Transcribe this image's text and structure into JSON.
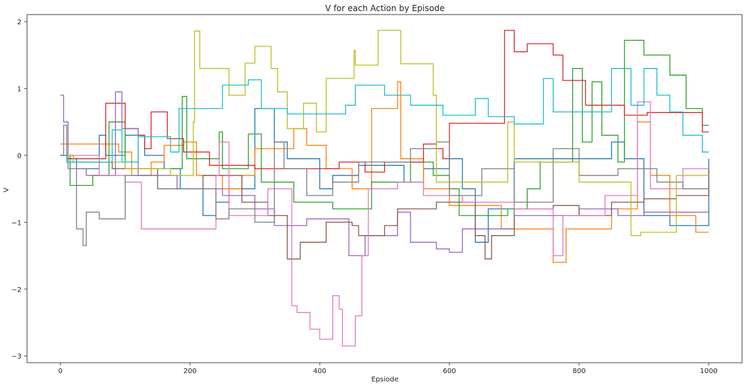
{
  "chart_data": {
    "type": "line",
    "title": "V for each Action by Episode",
    "xlabel": "Epsiode",
    "ylabel": "V",
    "xlim": [
      -50,
      1050
    ],
    "ylim": [
      -3.1,
      2.1
    ],
    "xticks": [
      0,
      200,
      400,
      600,
      800,
      1000
    ],
    "yticks": [
      -3,
      -2,
      -1,
      0,
      1,
      2
    ],
    "grid": false,
    "legend": "none",
    "step": true,
    "series": [
      {
        "name": "blue",
        "color": "#1f77b4",
        "points": [
          [
            0,
            0
          ],
          [
            10,
            -0.05
          ],
          [
            25,
            -0.2
          ],
          [
            60,
            0.3
          ],
          [
            70,
            0
          ],
          [
            100,
            0.3
          ],
          [
            130,
            0
          ],
          [
            160,
            -0.2
          ],
          [
            185,
            -0.5
          ],
          [
            220,
            -0.9
          ],
          [
            240,
            -0.7
          ],
          [
            260,
            -0.5
          ],
          [
            300,
            0.7
          ],
          [
            330,
            0.2
          ],
          [
            350,
            -0.05
          ],
          [
            400,
            -0.5
          ],
          [
            420,
            -0.3
          ],
          [
            460,
            -0.15
          ],
          [
            530,
            -0.4
          ],
          [
            560,
            -0.2
          ],
          [
            600,
            -0.05
          ],
          [
            620,
            -0.5
          ],
          [
            640,
            -1.3
          ],
          [
            660,
            -0.8
          ],
          [
            700,
            -0.05
          ],
          [
            850,
            0.2
          ],
          [
            870,
            -0.05
          ],
          [
            900,
            -0.9
          ],
          [
            940,
            -1.05
          ],
          [
            1000,
            -0.05
          ]
        ]
      },
      {
        "name": "orange",
        "color": "#ff7f0e",
        "points": [
          [
            0,
            0.17
          ],
          [
            90,
            0.05
          ],
          [
            110,
            -0.3
          ],
          [
            140,
            -0.1
          ],
          [
            160,
            0.15
          ],
          [
            190,
            0.2
          ],
          [
            210,
            -0.3
          ],
          [
            250,
            -0.5
          ],
          [
            280,
            -0.3
          ],
          [
            300,
            0.1
          ],
          [
            360,
            0.4
          ],
          [
            380,
            0.15
          ],
          [
            410,
            -0.2
          ],
          [
            450,
            -0.5
          ],
          [
            480,
            0.7
          ],
          [
            520,
            1.1
          ],
          [
            525,
            -0.05
          ],
          [
            560,
            -0.5
          ],
          [
            600,
            -0.75
          ],
          [
            680,
            -1.1
          ],
          [
            760,
            -1.6
          ],
          [
            780,
            -1.1
          ],
          [
            850,
            -0.8
          ],
          [
            890,
            0.5
          ],
          [
            910,
            -0.3
          ],
          [
            940,
            -0.9
          ],
          [
            980,
            -1.15
          ],
          [
            1000,
            -1.15
          ]
        ]
      },
      {
        "name": "green",
        "color": "#2ca02c",
        "points": [
          [
            0,
            0
          ],
          [
            15,
            -0.45
          ],
          [
            50,
            -0.3
          ],
          [
            75,
            0.5
          ],
          [
            100,
            -0.2
          ],
          [
            188,
            0.88
          ],
          [
            195,
            -0.05
          ],
          [
            245,
            0.35
          ],
          [
            250,
            -0.2
          ],
          [
            290,
            0.32
          ],
          [
            310,
            -0.4
          ],
          [
            360,
            -0.7
          ],
          [
            420,
            -0.8
          ],
          [
            480,
            -0.4
          ],
          [
            540,
            -0.1
          ],
          [
            575,
            -0.3
          ],
          [
            600,
            -0.5
          ],
          [
            615,
            -0.9
          ],
          [
            690,
            -0.8
          ],
          [
            720,
            -0.5
          ],
          [
            740,
            -0.1
          ],
          [
            790,
            1.3
          ],
          [
            805,
            0.2
          ],
          [
            820,
            1.1
          ],
          [
            835,
            0.3
          ],
          [
            860,
            -0.1
          ],
          [
            870,
            1.72
          ],
          [
            900,
            1.5
          ],
          [
            940,
            1.2
          ],
          [
            965,
            0.7
          ],
          [
            990,
            0.45
          ],
          [
            1000,
            0.45
          ]
        ]
      },
      {
        "name": "red",
        "color": "#d62728",
        "points": [
          [
            0,
            0
          ],
          [
            10,
            -0.05
          ],
          [
            70,
            0.78
          ],
          [
            100,
            0.4
          ],
          [
            120,
            0.3
          ],
          [
            130,
            0.1
          ],
          [
            140,
            0.65
          ],
          [
            165,
            0.25
          ],
          [
            190,
            0.05
          ],
          [
            230,
            -0.15
          ],
          [
            300,
            -0.2
          ],
          [
            430,
            -0.1
          ],
          [
            470,
            -0.25
          ],
          [
            500,
            -0.1
          ],
          [
            560,
            0.17
          ],
          [
            580,
            0.1
          ],
          [
            590,
            -0.05
          ],
          [
            600,
            0.48
          ],
          [
            685,
            1.87
          ],
          [
            700,
            1.55
          ],
          [
            720,
            1.67
          ],
          [
            760,
            1.5
          ],
          [
            775,
            1.12
          ],
          [
            810,
            0.75
          ],
          [
            870,
            0.6
          ],
          [
            905,
            0.64
          ],
          [
            990,
            0.35
          ],
          [
            1000,
            0.35
          ]
        ]
      },
      {
        "name": "purple",
        "color": "#9467bd",
        "points": [
          [
            0,
            0.9
          ],
          [
            5,
            0.5
          ],
          [
            12,
            -0.2
          ],
          [
            40,
            -0.3
          ],
          [
            85,
            0.95
          ],
          [
            95,
            0.4
          ],
          [
            120,
            -0.3
          ],
          [
            180,
            -0.5
          ],
          [
            250,
            -0.6
          ],
          [
            300,
            -0.8
          ],
          [
            330,
            -1.05
          ],
          [
            380,
            -0.95
          ],
          [
            445,
            -1.5
          ],
          [
            470,
            -1.2
          ],
          [
            520,
            -0.85
          ],
          [
            540,
            -1.3
          ],
          [
            580,
            -1.4
          ],
          [
            600,
            -1.45
          ],
          [
            620,
            -1.1
          ],
          [
            700,
            -0.9
          ],
          [
            800,
            -0.8
          ],
          [
            860,
            -0.9
          ],
          [
            900,
            -0.85
          ],
          [
            1000,
            -0.85
          ]
        ]
      },
      {
        "name": "brown",
        "color": "#8c564b",
        "points": [
          [
            0,
            0
          ],
          [
            20,
            -0.1
          ],
          [
            80,
            -0.2
          ],
          [
            150,
            -0.5
          ],
          [
            220,
            -0.3
          ],
          [
            280,
            -0.7
          ],
          [
            320,
            -0.9
          ],
          [
            350,
            -1.55
          ],
          [
            370,
            -1.3
          ],
          [
            410,
            -1.0
          ],
          [
            450,
            -1.05
          ],
          [
            460,
            -1.2
          ],
          [
            500,
            -1.05
          ],
          [
            520,
            -0.8
          ],
          [
            580,
            -0.7
          ],
          [
            640,
            -1.2
          ],
          [
            655,
            -1.55
          ],
          [
            665,
            -1.2
          ],
          [
            700,
            -0.8
          ],
          [
            760,
            -0.75
          ],
          [
            800,
            -0.9
          ],
          [
            850,
            -0.7
          ],
          [
            900,
            -0.65
          ],
          [
            950,
            -0.6
          ],
          [
            1000,
            -0.2
          ]
        ]
      },
      {
        "name": "pink",
        "color": "#e377c2",
        "points": [
          [
            0,
            0
          ],
          [
            60,
            -0.3
          ],
          [
            100,
            -0.4
          ],
          [
            125,
            -1.1
          ],
          [
            240,
            -0.3
          ],
          [
            245,
            0.2
          ],
          [
            260,
            -0.9
          ],
          [
            320,
            -0.5
          ],
          [
            357,
            -2.25
          ],
          [
            365,
            -2.35
          ],
          [
            385,
            -2.6
          ],
          [
            400,
            -2.75
          ],
          [
            420,
            -2.1
          ],
          [
            430,
            -2.3
          ],
          [
            435,
            -2.85
          ],
          [
            455,
            -2.4
          ],
          [
            465,
            -1.5
          ],
          [
            475,
            -0.5
          ],
          [
            520,
            -0.4
          ],
          [
            560,
            -0.6
          ],
          [
            620,
            -0.7
          ],
          [
            700,
            -0.8
          ],
          [
            760,
            -1.5
          ],
          [
            775,
            -0.9
          ],
          [
            840,
            -0.6
          ],
          [
            890,
            0.8
          ],
          [
            910,
            -0.5
          ],
          [
            960,
            -0.2
          ],
          [
            1000,
            -0.2
          ]
        ]
      },
      {
        "name": "gray",
        "color": "#7f7f7f",
        "points": [
          [
            0,
            0
          ],
          [
            5,
            0.45
          ],
          [
            10,
            -0.1
          ],
          [
            25,
            -1.1
          ],
          [
            35,
            -1.35
          ],
          [
            40,
            -0.85
          ],
          [
            60,
            -0.95
          ],
          [
            100,
            -0.3
          ],
          [
            150,
            -0.5
          ],
          [
            240,
            -0.95
          ],
          [
            260,
            -0.8
          ],
          [
            300,
            -1.0
          ],
          [
            330,
            0.2
          ],
          [
            345,
            -0.2
          ],
          [
            380,
            -0.6
          ],
          [
            420,
            -0.4
          ],
          [
            460,
            -0.1
          ],
          [
            540,
            0.1
          ],
          [
            580,
            0.2
          ],
          [
            600,
            -0.6
          ],
          [
            650,
            -0.2
          ],
          [
            700,
            -0.7
          ],
          [
            760,
            0.1
          ],
          [
            800,
            -0.3
          ],
          [
            860,
            -0.2
          ],
          [
            920,
            -0.4
          ],
          [
            960,
            -0.5
          ],
          [
            1000,
            -0.5
          ]
        ]
      },
      {
        "name": "olive",
        "color": "#bcbd22",
        "points": [
          [
            0,
            0
          ],
          [
            20,
            -0.1
          ],
          [
            100,
            -0.2
          ],
          [
            170,
            -0.3
          ],
          [
            205,
            0.5
          ],
          [
            207,
            1.86
          ],
          [
            215,
            1.3
          ],
          [
            260,
            0.9
          ],
          [
            285,
            1.38
          ],
          [
            300,
            1.63
          ],
          [
            325,
            1.3
          ],
          [
            335,
            0.95
          ],
          [
            350,
            0.4
          ],
          [
            375,
            0.78
          ],
          [
            395,
            0.35
          ],
          [
            410,
            1.15
          ],
          [
            453,
            1.57
          ],
          [
            455,
            1.35
          ],
          [
            490,
            1.87
          ],
          [
            525,
            1.37
          ],
          [
            575,
            0.9
          ],
          [
            580,
            -0.4
          ],
          [
            690,
            0.5
          ],
          [
            700,
            -0.1
          ],
          [
            800,
            -0.4
          ],
          [
            880,
            -1.2
          ],
          [
            895,
            -1.15
          ],
          [
            950,
            -0.3
          ],
          [
            1000,
            -0.3
          ]
        ]
      },
      {
        "name": "cyan",
        "color": "#17becf",
        "points": [
          [
            0,
            0
          ],
          [
            10,
            -0.1
          ],
          [
            80,
            0.38
          ],
          [
            95,
            -0.1
          ],
          [
            120,
            0.28
          ],
          [
            170,
            0.05
          ],
          [
            183,
            0.7
          ],
          [
            250,
            1.05
          ],
          [
            290,
            1.13
          ],
          [
            310,
            0.7
          ],
          [
            350,
            0.62
          ],
          [
            440,
            0.75
          ],
          [
            455,
            1.05
          ],
          [
            500,
            0.9
          ],
          [
            540,
            0.75
          ],
          [
            590,
            0.6
          ],
          [
            640,
            0.85
          ],
          [
            660,
            0.58
          ],
          [
            700,
            0.47
          ],
          [
            745,
            1.15
          ],
          [
            760,
            0.65
          ],
          [
            850,
            1.3
          ],
          [
            880,
            0.75
          ],
          [
            900,
            1.3
          ],
          [
            920,
            0.9
          ],
          [
            940,
            0.65
          ],
          [
            960,
            0.3
          ],
          [
            990,
            0.05
          ],
          [
            1000,
            0.05
          ]
        ]
      }
    ]
  }
}
